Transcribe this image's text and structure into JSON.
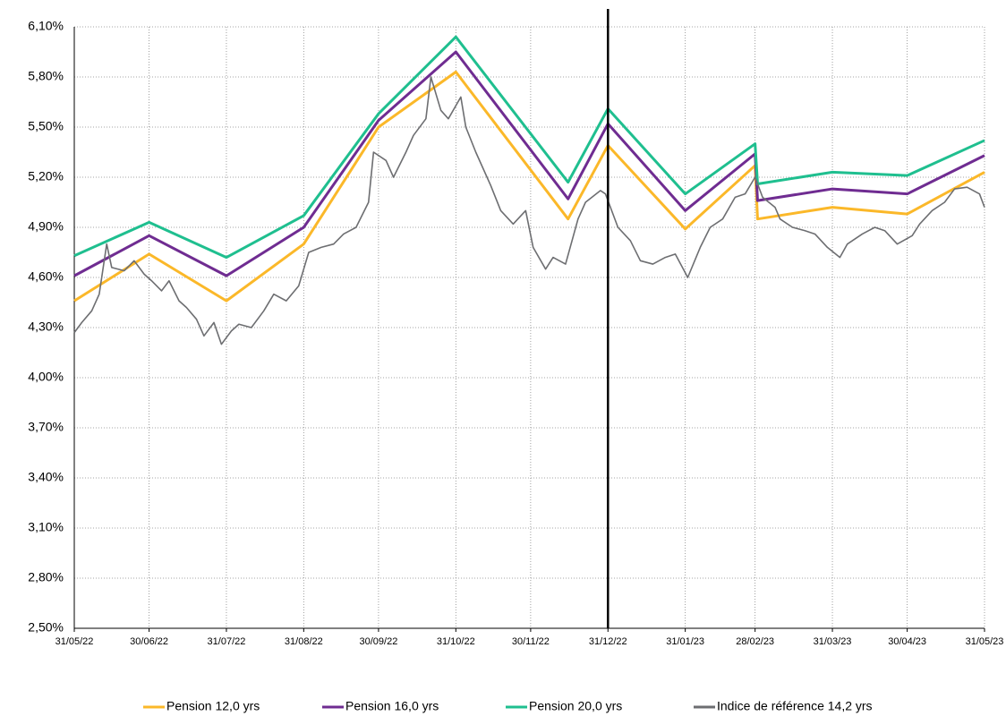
{
  "chart_data": {
    "type": "line",
    "xlim": [
      "2022-05-31",
      "2023-05-31"
    ],
    "xticks": [
      {
        "value": "2022-05-31",
        "label": "31/05/22"
      },
      {
        "value": "2022-06-30",
        "label": "30/06/22"
      },
      {
        "value": "2022-07-31",
        "label": "31/07/22"
      },
      {
        "value": "2022-08-31",
        "label": "31/08/22"
      },
      {
        "value": "2022-09-30",
        "label": "30/09/22"
      },
      {
        "value": "2022-10-31",
        "label": "31/10/22"
      },
      {
        "value": "2022-11-30",
        "label": "30/11/22"
      },
      {
        "value": "2022-12-31",
        "label": "31/12/22"
      },
      {
        "value": "2023-01-31",
        "label": "31/01/23"
      },
      {
        "value": "2023-02-28",
        "label": "28/02/23"
      },
      {
        "value": "2023-03-31",
        "label": "31/03/23"
      },
      {
        "value": "2023-04-30",
        "label": "30/04/23"
      },
      {
        "value": "2023-05-31",
        "label": "31/05/23"
      }
    ],
    "ylim": [
      2.5,
      6.1
    ],
    "yticks": [
      {
        "value": 2.5,
        "label": "2,50%"
      },
      {
        "value": 2.8,
        "label": "2,80%"
      },
      {
        "value": 3.1,
        "label": "3,10%"
      },
      {
        "value": 3.4,
        "label": "3,40%"
      },
      {
        "value": 3.7,
        "label": "3,70%"
      },
      {
        "value": 4.0,
        "label": "4,00%"
      },
      {
        "value": 4.3,
        "label": "4,30%"
      },
      {
        "value": 4.6,
        "label": "4,60%"
      },
      {
        "value": 4.9,
        "label": "4,90%"
      },
      {
        "value": 5.2,
        "label": "5,20%"
      },
      {
        "value": 5.5,
        "label": "5,50%"
      },
      {
        "value": 5.8,
        "label": "5,80%"
      },
      {
        "value": 6.1,
        "label": "6,10%"
      }
    ],
    "grid": true,
    "vline": "2022-12-31",
    "legend": "bottom",
    "series": [
      {
        "name": "Pension 12,0 yrs",
        "color": "#fbb829",
        "x": [
          "2022-05-31",
          "2022-06-30",
          "2022-07-31",
          "2022-08-31",
          "2022-09-30",
          "2022-10-31",
          "2022-12-15",
          "2022-12-31",
          "2023-01-31",
          "2023-02-28",
          "2023-03-01",
          "2023-03-31",
          "2023-04-30",
          "2023-05-31"
        ],
        "values": [
          4.46,
          4.74,
          4.46,
          4.8,
          5.5,
          5.83,
          4.95,
          5.39,
          4.89,
          5.27,
          4.95,
          5.02,
          4.98,
          5.23
        ]
      },
      {
        "name": "Pension 16,0 yrs",
        "color": "#6f2c91",
        "x": [
          "2022-05-31",
          "2022-06-30",
          "2022-07-31",
          "2022-08-31",
          "2022-09-30",
          "2022-10-31",
          "2022-12-15",
          "2022-12-31",
          "2023-01-31",
          "2023-02-28",
          "2023-03-01",
          "2023-03-31",
          "2023-04-30",
          "2023-05-31"
        ],
        "values": [
          4.61,
          4.85,
          4.61,
          4.9,
          5.54,
          5.95,
          5.07,
          5.52,
          5.0,
          5.34,
          5.06,
          5.13,
          5.1,
          5.33
        ]
      },
      {
        "name": "Pension 20,0 yrs",
        "color": "#1fbf8f",
        "x": [
          "2022-05-31",
          "2022-06-30",
          "2022-07-31",
          "2022-08-31",
          "2022-09-30",
          "2022-10-31",
          "2022-12-15",
          "2022-12-31",
          "2023-01-31",
          "2023-02-28",
          "2023-03-01",
          "2023-03-31",
          "2023-04-30",
          "2023-05-31"
        ],
        "values": [
          4.73,
          4.93,
          4.72,
          4.97,
          5.58,
          6.04,
          5.17,
          5.61,
          5.1,
          5.4,
          5.16,
          5.23,
          5.21,
          5.42
        ]
      },
      {
        "name": "Indice de référence 14,2 yrs",
        "color": "#6d6e71",
        "x": [
          "2022-05-31",
          "2022-06-03",
          "2022-06-07",
          "2022-06-10",
          "2022-06-13",
          "2022-06-15",
          "2022-06-20",
          "2022-06-24",
          "2022-06-28",
          "2022-07-01",
          "2022-07-05",
          "2022-07-08",
          "2022-07-12",
          "2022-07-15",
          "2022-07-19",
          "2022-07-22",
          "2022-07-26",
          "2022-07-29",
          "2022-08-02",
          "2022-08-05",
          "2022-08-10",
          "2022-08-15",
          "2022-08-19",
          "2022-08-24",
          "2022-08-29",
          "2022-09-02",
          "2022-09-07",
          "2022-09-12",
          "2022-09-16",
          "2022-09-21",
          "2022-09-26",
          "2022-09-28",
          "2022-10-03",
          "2022-10-06",
          "2022-10-11",
          "2022-10-14",
          "2022-10-19",
          "2022-10-21",
          "2022-10-25",
          "2022-10-28",
          "2022-11-02",
          "2022-11-04",
          "2022-11-08",
          "2022-11-14",
          "2022-11-18",
          "2022-11-23",
          "2022-11-28",
          "2022-12-01",
          "2022-12-06",
          "2022-12-09",
          "2022-12-14",
          "2022-12-19",
          "2022-12-22",
          "2022-12-28",
          "2022-12-30",
          "2023-01-04",
          "2023-01-09",
          "2023-01-13",
          "2023-01-18",
          "2023-01-23",
          "2023-01-27",
          "2023-02-01",
          "2023-02-06",
          "2023-02-10",
          "2023-02-15",
          "2023-02-20",
          "2023-02-24",
          "2023-02-28",
          "2023-03-03",
          "2023-03-08",
          "2023-03-10",
          "2023-03-15",
          "2023-03-20",
          "2023-03-24",
          "2023-03-29",
          "2023-04-03",
          "2023-04-06",
          "2023-04-12",
          "2023-04-17",
          "2023-04-21",
          "2023-04-26",
          "2023-05-02",
          "2023-05-05",
          "2023-05-10",
          "2023-05-15",
          "2023-05-19",
          "2023-05-24",
          "2023-05-29",
          "2023-05-31"
        ],
        "values": [
          4.27,
          4.33,
          4.4,
          4.5,
          4.8,
          4.66,
          4.64,
          4.7,
          4.62,
          4.58,
          4.52,
          4.58,
          4.46,
          4.42,
          4.35,
          4.25,
          4.33,
          4.2,
          4.28,
          4.32,
          4.3,
          4.4,
          4.5,
          4.46,
          4.55,
          4.75,
          4.78,
          4.8,
          4.86,
          4.9,
          5.05,
          5.35,
          5.3,
          5.2,
          5.35,
          5.45,
          5.55,
          5.8,
          5.6,
          5.55,
          5.68,
          5.5,
          5.35,
          5.15,
          5.0,
          4.92,
          5.0,
          4.78,
          4.65,
          4.72,
          4.68,
          4.95,
          5.05,
          5.12,
          5.1,
          4.9,
          4.82,
          4.7,
          4.68,
          4.72,
          4.74,
          4.6,
          4.78,
          4.9,
          4.95,
          5.08,
          5.1,
          5.2,
          5.08,
          5.02,
          4.95,
          4.9,
          4.88,
          4.86,
          4.78,
          4.72,
          4.8,
          4.86,
          4.9,
          4.88,
          4.8,
          4.85,
          4.92,
          5.0,
          5.05,
          5.13,
          5.14,
          5.1,
          5.02
        ]
      }
    ]
  }
}
